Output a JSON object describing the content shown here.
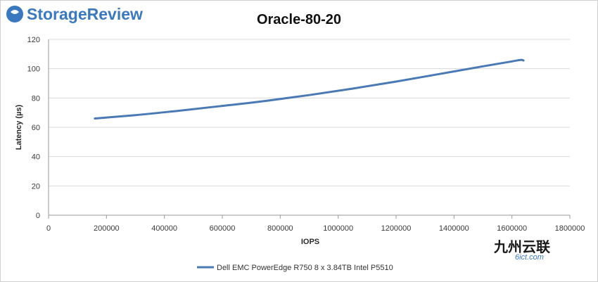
{
  "brand": {
    "name": "StorageReview",
    "accent": "#3a78bf"
  },
  "watermark": {
    "main": "九州云联",
    "sub": "6ict.com"
  },
  "chart_data": {
    "type": "line",
    "title": "Oracle-80-20",
    "xlabel": "IOPS",
    "ylabel": "Latency (µs)",
    "xlim": [
      0,
      1800000
    ],
    "ylim": [
      0,
      120
    ],
    "x_ticks": [
      0,
      200000,
      400000,
      600000,
      800000,
      1000000,
      1200000,
      1400000,
      1600000,
      1800000
    ],
    "y_ticks": [
      0,
      20,
      40,
      60,
      80,
      100,
      120
    ],
    "grid": "horizontal",
    "legend_position": "bottom",
    "series": [
      {
        "name": "Dell EMC PowerEdge R750 8 x 3.84TB Intel P5510",
        "color": "#4a7ab5",
        "points": [
          [
            160000,
            66.0
          ],
          [
            300000,
            68.3
          ],
          [
            450000,
            71.3
          ],
          [
            600000,
            74.6
          ],
          [
            750000,
            78.0
          ],
          [
            900000,
            82.0
          ],
          [
            1050000,
            86.4
          ],
          [
            1200000,
            91.2
          ],
          [
            1350000,
            96.4
          ],
          [
            1500000,
            101.6
          ],
          [
            1600000,
            105.0
          ],
          [
            1630000,
            106.0
          ],
          [
            1640000,
            105.6
          ]
        ]
      }
    ]
  }
}
